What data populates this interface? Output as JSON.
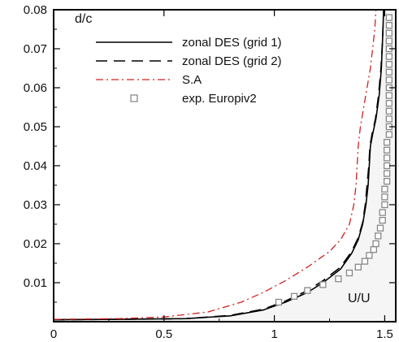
{
  "chart_data": {
    "type": "line",
    "xlabel": "U/U",
    "ylabel": "d/c",
    "xlim": [
      0,
      1.55
    ],
    "ylim": [
      0,
      0.08
    ],
    "x_ticks": [
      {
        "value": 0,
        "label": "0"
      },
      {
        "value": 0.5,
        "label": "0.5"
      },
      {
        "value": 1,
        "label": "1"
      },
      {
        "value": 1.5,
        "label": "1.5"
      }
    ],
    "y_ticks": [
      {
        "value": 0.01,
        "label": "0.01"
      },
      {
        "value": 0.02,
        "label": "0.02"
      },
      {
        "value": 0.03,
        "label": "0.03"
      },
      {
        "value": 0.04,
        "label": "0.04"
      },
      {
        "value": 0.05,
        "label": "0.05"
      },
      {
        "value": 0.06,
        "label": "0.06"
      },
      {
        "value": 0.07,
        "label": "0.07"
      },
      {
        "value": 0.08,
        "label": "0.08"
      }
    ],
    "grid": false,
    "legend_position": "top-center",
    "background_fill": "#f5f5f5",
    "series": [
      {
        "name": "zonal DES (grid 1)",
        "style": "solid",
        "color": "#000000",
        "points": [
          [
            0,
            0.0005
          ],
          [
            0.3,
            0.0006
          ],
          [
            0.6,
            0.0008
          ],
          [
            0.8,
            0.0015
          ],
          [
            0.95,
            0.003
          ],
          [
            1.05,
            0.005
          ],
          [
            1.15,
            0.0075
          ],
          [
            1.22,
            0.01
          ],
          [
            1.3,
            0.0135
          ],
          [
            1.35,
            0.0175
          ],
          [
            1.38,
            0.021
          ],
          [
            1.4,
            0.025
          ],
          [
            1.415,
            0.03
          ],
          [
            1.425,
            0.035
          ],
          [
            1.43,
            0.04
          ],
          [
            1.435,
            0.045
          ],
          [
            1.445,
            0.048
          ],
          [
            1.46,
            0.052
          ],
          [
            1.475,
            0.058
          ],
          [
            1.485,
            0.065
          ],
          [
            1.49,
            0.072
          ],
          [
            1.495,
            0.08
          ]
        ]
      },
      {
        "name": "zonal DES (grid 2)",
        "style": "dashed",
        "color": "#000000",
        "points": [
          [
            0,
            0.0005
          ],
          [
            0.3,
            0.0006
          ],
          [
            0.6,
            0.0008
          ],
          [
            0.8,
            0.0016
          ],
          [
            0.95,
            0.0032
          ],
          [
            1.05,
            0.0053
          ],
          [
            1.15,
            0.008
          ],
          [
            1.22,
            0.0105
          ],
          [
            1.3,
            0.014
          ],
          [
            1.35,
            0.018
          ],
          [
            1.38,
            0.0215
          ],
          [
            1.4,
            0.0255
          ],
          [
            1.412,
            0.03
          ],
          [
            1.42,
            0.035
          ],
          [
            1.428,
            0.04
          ],
          [
            1.433,
            0.045
          ],
          [
            1.442,
            0.048
          ],
          [
            1.458,
            0.052
          ],
          [
            1.472,
            0.058
          ],
          [
            1.483,
            0.065
          ],
          [
            1.49,
            0.072
          ],
          [
            1.495,
            0.08
          ]
        ]
      },
      {
        "name": "S.A",
        "style": "dashdot",
        "color": "#d42020",
        "points": [
          [
            0,
            0.0006
          ],
          [
            0.3,
            0.0008
          ],
          [
            0.5,
            0.0012
          ],
          [
            0.7,
            0.0025
          ],
          [
            0.85,
            0.005
          ],
          [
            0.95,
            0.0075
          ],
          [
            1.05,
            0.0105
          ],
          [
            1.15,
            0.014
          ],
          [
            1.25,
            0.018
          ],
          [
            1.3,
            0.021
          ],
          [
            1.34,
            0.025
          ],
          [
            1.36,
            0.03
          ],
          [
            1.37,
            0.035
          ],
          [
            1.375,
            0.04
          ],
          [
            1.38,
            0.045
          ],
          [
            1.39,
            0.05
          ],
          [
            1.405,
            0.055
          ],
          [
            1.42,
            0.06
          ],
          [
            1.435,
            0.065
          ],
          [
            1.445,
            0.07
          ],
          [
            1.455,
            0.075
          ],
          [
            1.46,
            0.08
          ]
        ]
      },
      {
        "name": "exp. Europiv2",
        "style": "markers",
        "marker": "square",
        "color": "#888888",
        "points": [
          [
            1.02,
            0.005
          ],
          [
            1.09,
            0.0065
          ],
          [
            1.15,
            0.008
          ],
          [
            1.22,
            0.0095
          ],
          [
            1.29,
            0.011
          ],
          [
            1.34,
            0.0125
          ],
          [
            1.38,
            0.014
          ],
          [
            1.41,
            0.0155
          ],
          [
            1.43,
            0.017
          ],
          [
            1.45,
            0.0185
          ],
          [
            1.46,
            0.02
          ],
          [
            1.47,
            0.022
          ],
          [
            1.48,
            0.024
          ],
          [
            1.49,
            0.026
          ],
          [
            1.49,
            0.028
          ],
          [
            1.5,
            0.03
          ],
          [
            1.5,
            0.032
          ],
          [
            1.5,
            0.034
          ],
          [
            1.51,
            0.036
          ],
          [
            1.51,
            0.038
          ],
          [
            1.51,
            0.04
          ],
          [
            1.51,
            0.042
          ],
          [
            1.51,
            0.044
          ],
          [
            1.51,
            0.046
          ],
          [
            1.52,
            0.048
          ],
          [
            1.52,
            0.05
          ],
          [
            1.52,
            0.052
          ],
          [
            1.52,
            0.054
          ],
          [
            1.52,
            0.056
          ],
          [
            1.52,
            0.058
          ],
          [
            1.52,
            0.06
          ],
          [
            1.52,
            0.062
          ],
          [
            1.52,
            0.064
          ],
          [
            1.52,
            0.066
          ],
          [
            1.52,
            0.068
          ],
          [
            1.52,
            0.07
          ],
          [
            1.52,
            0.072
          ],
          [
            1.52,
            0.074
          ],
          [
            1.52,
            0.076
          ],
          [
            1.52,
            0.078
          ]
        ]
      }
    ]
  }
}
